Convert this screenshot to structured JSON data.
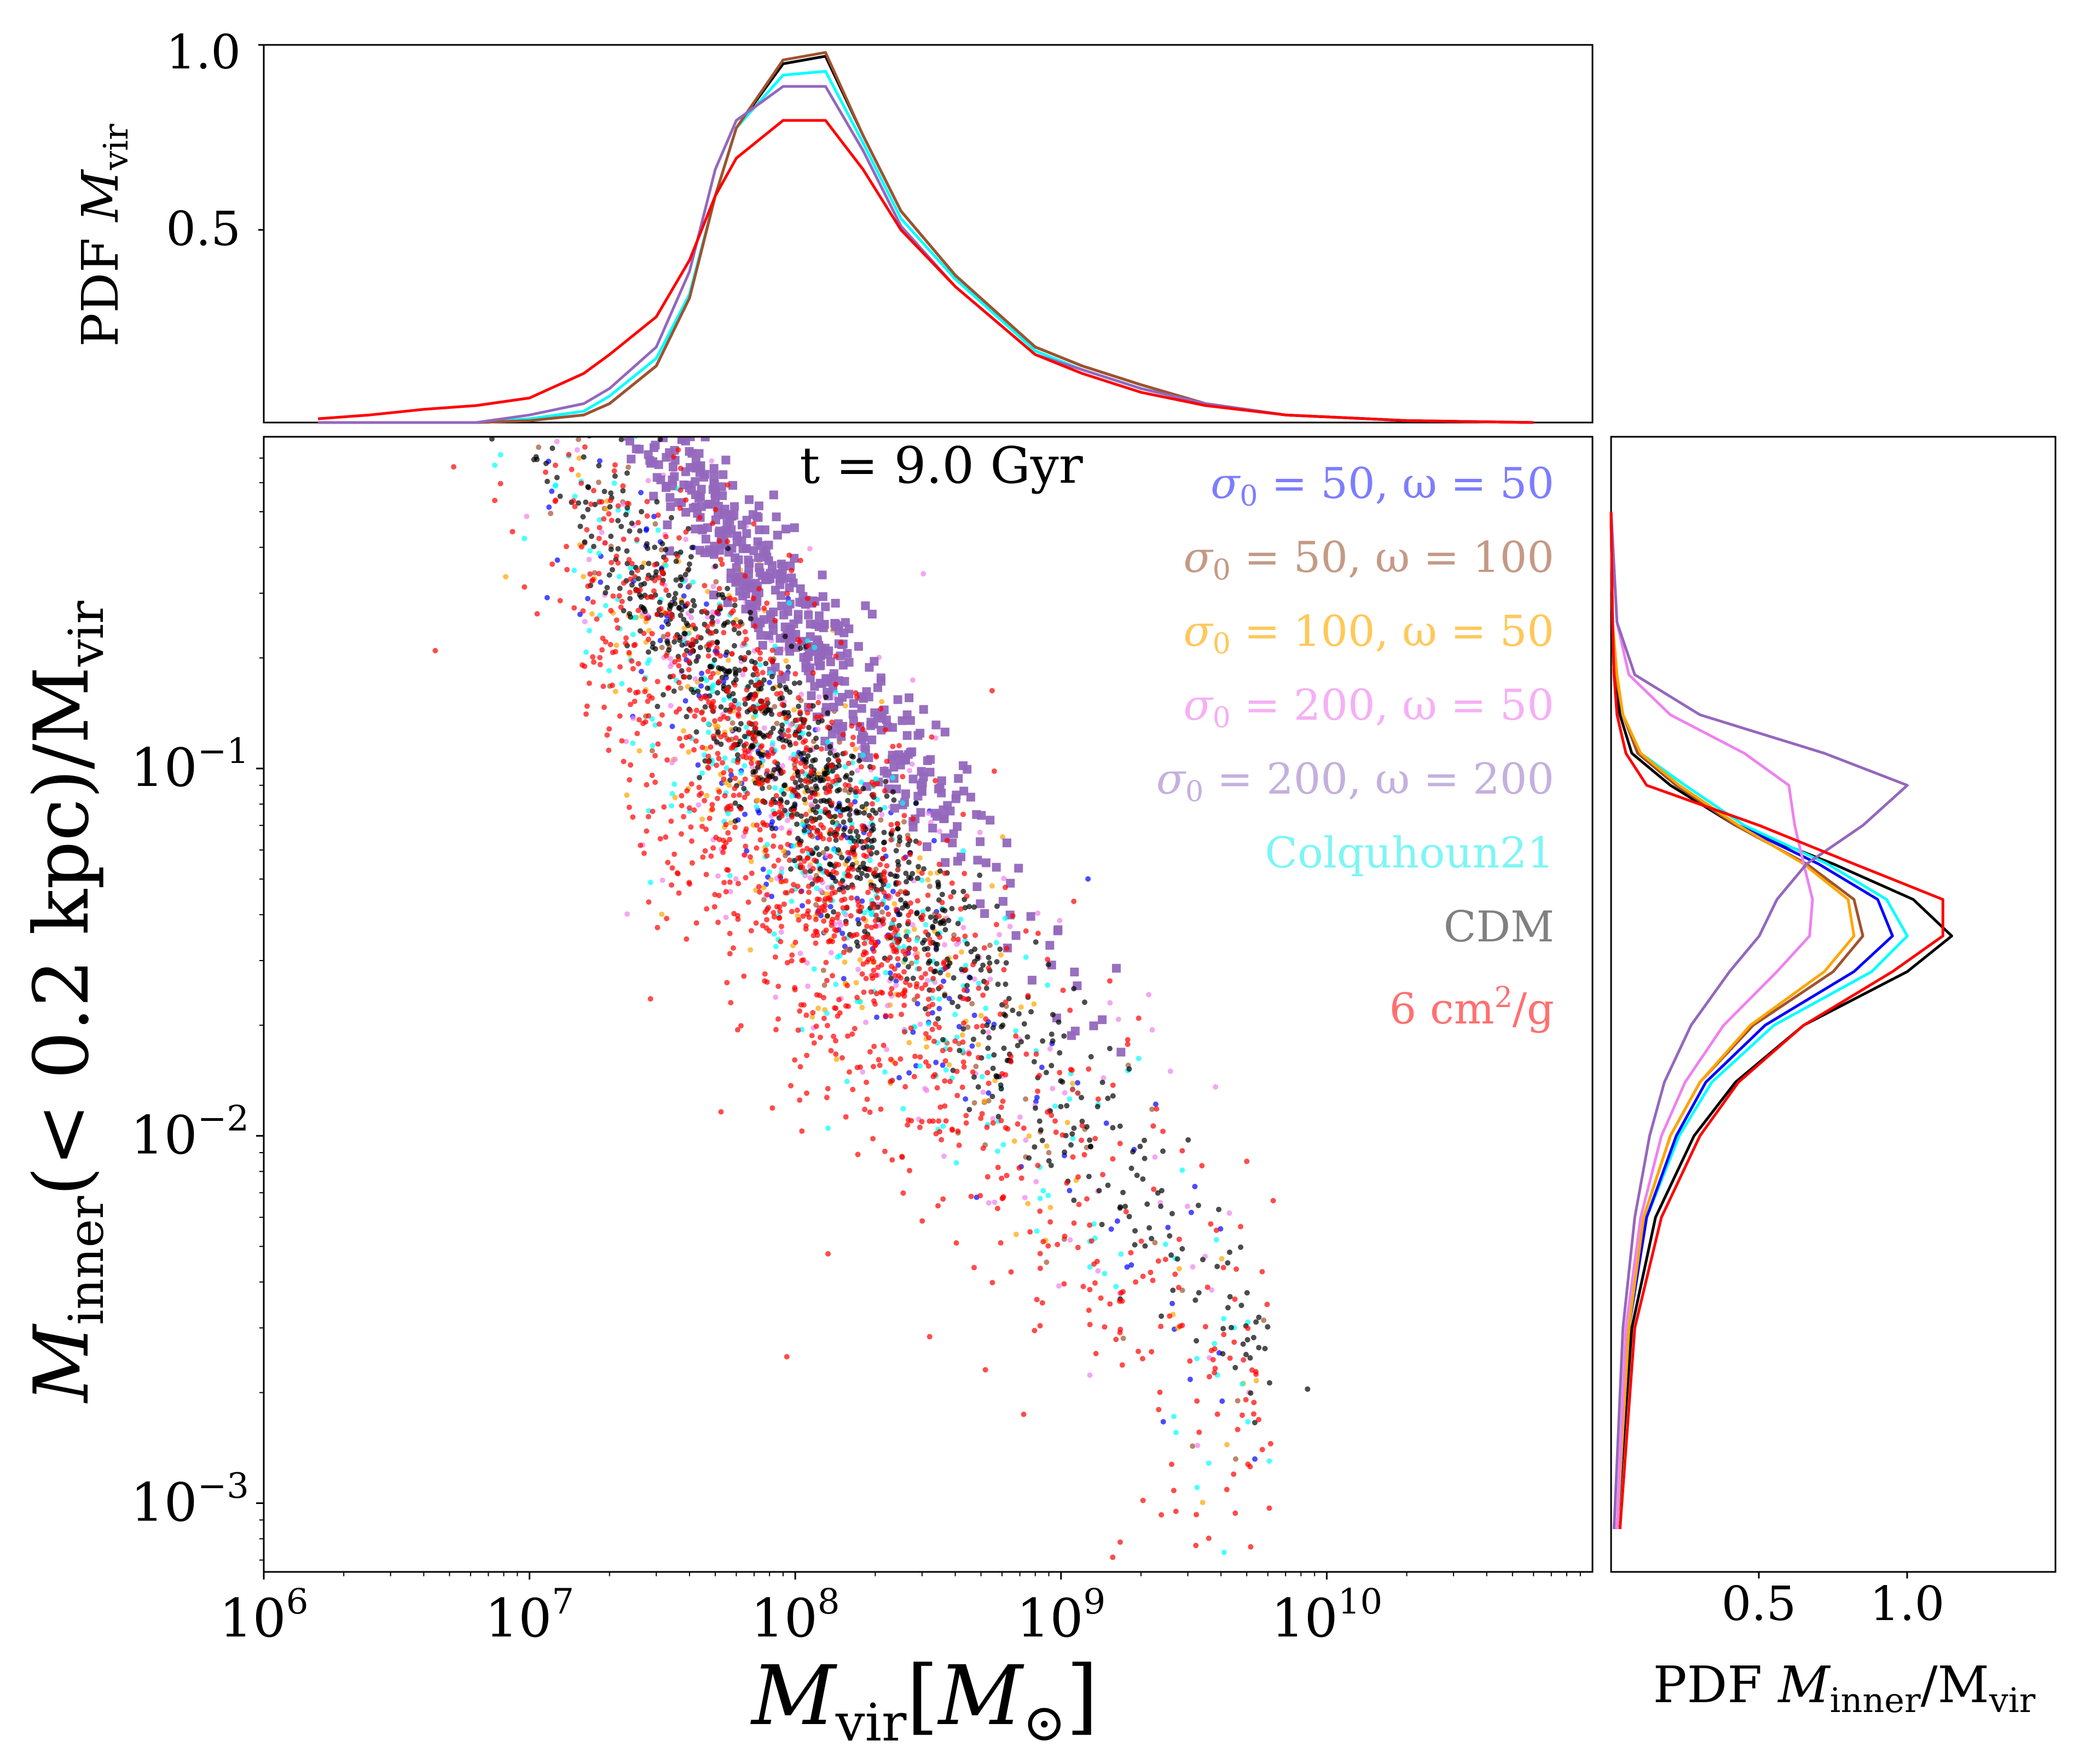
{
  "chart_data": [
    {
      "panel": "top",
      "type": "line",
      "ylabel": "PDF M_vir",
      "ylabel_main": "PDF ",
      "ylabel_sym": "M",
      "ylabel_sub": "vir",
      "yticks": [
        "0.5",
        "1.0"
      ],
      "x": [
        1600000.0,
        2500000.0,
        4000000.0,
        6300000.0,
        10000000.0,
        16000000.0,
        20000000.0,
        30000000.0,
        40000000.0,
        50000000.0,
        60000000.0,
        90000000.0,
        130000000.0,
        180000000.0,
        250000000.0,
        400000000.0,
        800000000.0,
        1200000000.0,
        2000000000.0,
        3500000000.0,
        7000000000.0,
        20000000000.0,
        60000000000.0
      ],
      "series": [
        {
          "name": "CDM",
          "color": "#000000",
          "values": [
            0.0,
            0.0,
            0.0,
            0.0,
            0.005,
            0.02,
            0.05,
            0.15,
            0.33,
            0.6,
            0.78,
            0.95,
            0.97,
            0.76,
            0.56,
            0.39,
            0.2,
            0.15,
            0.1,
            0.05,
            0.02,
            0.005,
            0.0
          ]
        },
        {
          "name": "Colquhoun21",
          "color": "#00ffff",
          "values": [
            0.0,
            0.0,
            0.0,
            0.0,
            0.01,
            0.03,
            0.07,
            0.17,
            0.34,
            0.6,
            0.78,
            0.92,
            0.93,
            0.74,
            0.54,
            0.38,
            0.19,
            0.14,
            0.09,
            0.05,
            0.02,
            0.005,
            0.0
          ]
        },
        {
          "name": "sigma0=50,omega=100",
          "color": "#a0522d",
          "values": [
            0.0,
            0.0,
            0.0,
            0.0,
            0.005,
            0.02,
            0.05,
            0.15,
            0.33,
            0.6,
            0.78,
            0.96,
            0.98,
            0.76,
            0.56,
            0.39,
            0.2,
            0.15,
            0.1,
            0.05,
            0.02,
            0.005,
            0.0
          ]
        },
        {
          "name": "sigma0=200,omega=200",
          "color": "#9467bd",
          "values": [
            0.0,
            0.0,
            0.0,
            0.0,
            0.02,
            0.05,
            0.09,
            0.2,
            0.4,
            0.67,
            0.8,
            0.89,
            0.89,
            0.72,
            0.52,
            0.36,
            0.18,
            0.14,
            0.09,
            0.05,
            0.02,
            0.005,
            0.0
          ]
        },
        {
          "name": "6 cm2/g",
          "color": "#ff0000",
          "values": [
            0.01,
            0.02,
            0.035,
            0.045,
            0.065,
            0.13,
            0.18,
            0.28,
            0.43,
            0.6,
            0.7,
            0.8,
            0.8,
            0.67,
            0.51,
            0.36,
            0.18,
            0.13,
            0.08,
            0.045,
            0.02,
            0.005,
            0.0
          ]
        }
      ]
    },
    {
      "panel": "main",
      "type": "scatter",
      "annotation": "t = 9.0 Gyr",
      "xlabel": "M_vir[M_sun]",
      "xlabel_sym": "M",
      "xlabel_sub": "vir",
      "xlabel_unit_open": "[",
      "xlabel_unit_sym": "M",
      "xlabel_unit_sub": "⊙",
      "xlabel_unit_close": "]",
      "ylabel": "M_inner(< 0.2 kpc)/M_vir",
      "ylabel_sym": "M",
      "ylabel_sub": "inner",
      "ylabel_mid": "(< 0.2 kpc)/M",
      "ylabel_sub2": "vir",
      "xlim": [
        1000000.0,
        100000000000.0
      ],
      "ylim": [
        0.00065,
        0.8
      ],
      "xticks": [
        {
          "base": "10",
          "exp": "6"
        },
        {
          "base": "10",
          "exp": "7"
        },
        {
          "base": "10",
          "exp": "8"
        },
        {
          "base": "10",
          "exp": "9"
        },
        {
          "base": "10",
          "exp": "10"
        }
      ],
      "yticks": [
        {
          "base": "10",
          "exp": "−1"
        },
        {
          "base": "10",
          "exp": "−2"
        },
        {
          "base": "10",
          "exp": "−3"
        }
      ],
      "relation": {
        "pivot_mass": 100000000.0,
        "slope": -0.9
      },
      "series": [
        {
          "name": "σ0 = 50, ω = 50",
          "legend_label": "σ0 = 50, ω = 50",
          "color": "#0000ff",
          "offset_dex": 0.0,
          "scatter_dex": 0.2,
          "marker": "circle",
          "n": 200
        },
        {
          "name": "σ0 = 50, ω = 100",
          "legend_label": "σ0 = 50, ω = 100",
          "color": "#a0522d",
          "offset_dex": 0.0,
          "scatter_dex": 0.2,
          "marker": "circle",
          "n": 140
        },
        {
          "name": "σ0 = 100, ω = 50",
          "legend_label": "σ0 = 100, ω = 50",
          "color": "#ffa500",
          "offset_dex": -0.05,
          "scatter_dex": 0.25,
          "marker": "circle",
          "n": 200
        },
        {
          "name": "σ0 = 200, ω = 50",
          "legend_label": "σ0 = 200, ω = 50",
          "color": "#ee82ee",
          "offset_dex": 0.05,
          "scatter_dex": 0.28,
          "marker": "circle",
          "n": 260
        },
        {
          "name": "σ0 = 200, ω = 200",
          "legend_label": "σ0 = 200, ω = 200",
          "color": "#9467bd",
          "offset_dex": 0.48,
          "scatter_dex": 0.1,
          "marker": "square",
          "n": 520
        },
        {
          "name": "Colquhoun21",
          "legend_label": "Colquhoun21",
          "color": "#00ffff",
          "offset_dex": -0.05,
          "scatter_dex": 0.22,
          "marker": "circle",
          "n": 320
        },
        {
          "name": "CDM",
          "legend_label": "CDM",
          "color": "#000000",
          "offset_dex": 0.08,
          "scatter_dex": 0.13,
          "marker": "circle",
          "n": 950
        },
        {
          "name": "6 cm²/g",
          "legend_label": "6 cm²/g",
          "color": "#ff0000",
          "offset_dex": -0.12,
          "scatter_dex": 0.3,
          "marker": "circle",
          "n": 1300
        }
      ],
      "legend": [
        {
          "prefix": "σ",
          "sub": "0",
          "rest": " = 50, ω = 50",
          "color": "#0000ff"
        },
        {
          "prefix": "σ",
          "sub": "0",
          "rest": " = 50, ω = 100",
          "color": "#a0522d"
        },
        {
          "prefix": "σ",
          "sub": "0",
          "rest": " = 100, ω = 50",
          "color": "#ffa500"
        },
        {
          "prefix": "σ",
          "sub": "0",
          "rest": " = 200, ω = 50",
          "color": "#ee82ee"
        },
        {
          "prefix": "σ",
          "sub": "0",
          "rest": " = 200, ω = 200",
          "color": "#9467bd"
        },
        {
          "prefix": "Colquhoun21",
          "sub": "",
          "rest": "",
          "color": "#00ffff"
        },
        {
          "prefix": "CDM",
          "sub": "",
          "rest": "",
          "color": "#000000"
        },
        {
          "prefix": "6 cm",
          "sup": "2",
          "rest": "/g",
          "color": "#ff0000"
        }
      ],
      "legend_position": "top-right"
    },
    {
      "panel": "right",
      "type": "line",
      "orientation": "horizontal",
      "xlabel": "PDF M_inner/M_vir",
      "xlabel_main": "PDF ",
      "xlabel_sym": "M",
      "xlabel_sub": "inner",
      "xlabel_mid": "/M",
      "xlabel_sub2": "vir",
      "xticks": [
        "0.5",
        "1.0"
      ],
      "xlim": [
        0,
        1.5
      ],
      "ylog": [
        0.00085,
        0.003,
        0.006,
        0.01,
        0.014,
        0.02,
        0.028,
        0.035,
        0.044,
        0.055,
        0.07,
        0.09,
        0.11,
        0.14,
        0.18,
        0.25,
        0.5
      ],
      "series": [
        {
          "name": "CDM",
          "color": "#000000",
          "values": [
            0.02,
            0.07,
            0.15,
            0.28,
            0.42,
            0.65,
            1.0,
            1.15,
            1.02,
            0.75,
            0.42,
            0.2,
            0.07,
            0.03,
            0.01,
            0.005,
            0.0
          ]
        },
        {
          "name": "Colquhoun21",
          "color": "#00ffff",
          "values": [
            0.02,
            0.06,
            0.12,
            0.23,
            0.34,
            0.55,
            0.88,
            1.0,
            0.93,
            0.73,
            0.45,
            0.25,
            0.1,
            0.04,
            0.015,
            0.005,
            0.0
          ]
        },
        {
          "name": "σ0 = 50, ω = 50",
          "color": "#0000ff",
          "values": [
            0.02,
            0.06,
            0.12,
            0.22,
            0.32,
            0.52,
            0.82,
            0.95,
            0.9,
            0.7,
            0.43,
            0.22,
            0.09,
            0.04,
            0.015,
            0.005,
            0.0
          ]
        },
        {
          "name": "σ0 = 50, ω = 100",
          "color": "#a0522d",
          "values": [
            0.02,
            0.06,
            0.11,
            0.2,
            0.3,
            0.48,
            0.75,
            0.85,
            0.82,
            0.66,
            0.42,
            0.22,
            0.09,
            0.04,
            0.015,
            0.005,
            0.0
          ]
        },
        {
          "name": "σ0 = 100, ω = 50",
          "color": "#ffa500",
          "values": [
            0.02,
            0.06,
            0.11,
            0.2,
            0.3,
            0.47,
            0.72,
            0.82,
            0.8,
            0.65,
            0.43,
            0.23,
            0.1,
            0.04,
            0.02,
            0.005,
            0.0
          ]
        },
        {
          "name": "σ0 = 200, ω = 50",
          "color": "#ee82ee",
          "values": [
            0.02,
            0.05,
            0.1,
            0.17,
            0.25,
            0.38,
            0.56,
            0.67,
            0.68,
            0.65,
            0.62,
            0.6,
            0.45,
            0.2,
            0.06,
            0.02,
            0.0
          ]
        },
        {
          "name": "σ0 = 200, ω = 200",
          "color": "#9467bd",
          "values": [
            0.01,
            0.04,
            0.08,
            0.13,
            0.18,
            0.27,
            0.4,
            0.5,
            0.56,
            0.66,
            0.85,
            1.0,
            0.72,
            0.3,
            0.08,
            0.02,
            0.0
          ]
        },
        {
          "name": "6 cm²/g",
          "color": "#ff0000",
          "values": [
            0.03,
            0.08,
            0.17,
            0.3,
            0.43,
            0.65,
            0.95,
            1.12,
            1.12,
            0.82,
            0.5,
            0.12,
            0.05,
            0.02,
            0.01,
            0.005,
            0.0
          ]
        }
      ]
    }
  ]
}
